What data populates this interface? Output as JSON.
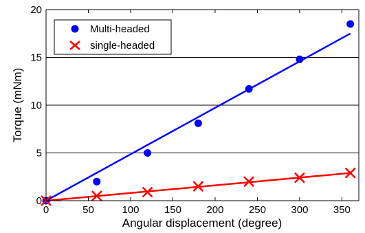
{
  "chart_data": {
    "type": "scatter",
    "xlabel": "Angular displacement (degree)",
    "ylabel": "Torque (mNm)",
    "xlim": [
      0,
      370
    ],
    "ylim": [
      0,
      20
    ],
    "xticks": [
      0,
      50,
      100,
      150,
      200,
      250,
      300,
      350
    ],
    "yticks": [
      0,
      5,
      10,
      15,
      20
    ],
    "grid": "horizontal",
    "legend_position": "top-left",
    "series": [
      {
        "name": "Multi-headed",
        "marker": "filled-circle",
        "color": "#0000ff",
        "x": [
          0,
          60,
          120,
          180,
          240,
          300,
          360
        ],
        "y": [
          0,
          2.0,
          5.0,
          8.1,
          11.7,
          14.8,
          18.5
        ],
        "fit_line": {
          "x": [
            0,
            360
          ],
          "y": [
            0,
            17.5
          ]
        }
      },
      {
        "name": "single-headed",
        "marker": "x",
        "color": "#ff0000",
        "x": [
          0,
          60,
          120,
          180,
          240,
          300,
          360
        ],
        "y": [
          0,
          0.5,
          0.9,
          1.5,
          2.0,
          2.4,
          2.9
        ],
        "fit_line": {
          "x": [
            0,
            360
          ],
          "y": [
            0,
            2.9
          ]
        }
      }
    ]
  }
}
